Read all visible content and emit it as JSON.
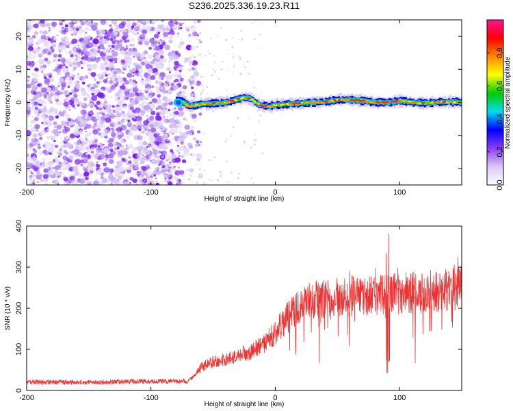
{
  "title": "S236.2025.336.19.23.R11",
  "chart_data": [
    {
      "type": "heatmap",
      "xlabel": "Height of straight line (km)",
      "ylabel": "Frequency (Hz)",
      "xlim": [
        -200,
        150
      ],
      "ylim": [
        -25,
        25
      ],
      "x_ticks": [
        -200,
        -100,
        0,
        100
      ],
      "y_ticks": [
        -20,
        -10,
        0,
        10,
        20
      ],
      "grid": false,
      "colorbar": {
        "label": "Normalized spectral amplitude",
        "range": [
          0,
          1
        ],
        "ticks": [
          "0.0",
          "0.2",
          "0.4",
          "0.6",
          "0.8"
        ],
        "colors": [
          "#ffffff",
          "#d9c8f5",
          "#8a3ff0",
          "#0000ff",
          "#00ddee",
          "#00cc00",
          "#ffff00",
          "#ff8800",
          "#ff0000",
          "#ff1493"
        ]
      },
      "noise_region_x": [
        -200,
        -70
      ],
      "signal_trace": {
        "x": [
          -80,
          -75,
          -70,
          -60,
          -50,
          -40,
          -35,
          -30,
          -25,
          -20,
          -15,
          -10,
          -5,
          0,
          10,
          20,
          30,
          40,
          50,
          60,
          70,
          80,
          90,
          100,
          110,
          120,
          130,
          140,
          150
        ],
        "frequency": [
          0.5,
          0.2,
          -1.2,
          -0.5,
          -0.3,
          0.0,
          0.5,
          1.0,
          1.5,
          1.0,
          -0.5,
          -1.0,
          -1.2,
          -0.8,
          -0.5,
          -0.3,
          0.0,
          0.2,
          0.8,
          0.8,
          0.5,
          0.0,
          0.0,
          0.5,
          0.0,
          -0.2,
          0.0,
          0.2,
          0.0
        ]
      }
    },
    {
      "type": "line",
      "xlabel": "Height of straight line (km)",
      "ylabel": "SNR (10 * v/v)",
      "xlim": [
        -200,
        150
      ],
      "ylim": [
        0,
        400
      ],
      "x_ticks": [
        -200,
        -100,
        0,
        100
      ],
      "y_ticks": [
        0,
        100,
        200,
        300,
        400
      ],
      "grid": false,
      "series": [
        {
          "name": "SNR",
          "color": "#ee3333",
          "envelope_x": [
            -200,
            -150,
            -100,
            -70,
            -65,
            -60,
            -50,
            -40,
            -30,
            -20,
            -10,
            0,
            10,
            20,
            25,
            30,
            40,
            50,
            60,
            70,
            80,
            90,
            100,
            110,
            120,
            130,
            140,
            150
          ],
          "envelope_y": [
            20,
            20,
            22,
            22,
            35,
            55,
            70,
            75,
            85,
            95,
            110,
            140,
            180,
            205,
            215,
            220,
            225,
            228,
            228,
            230,
            232,
            235,
            235,
            238,
            240,
            242,
            245,
            248
          ]
        }
      ]
    }
  ]
}
